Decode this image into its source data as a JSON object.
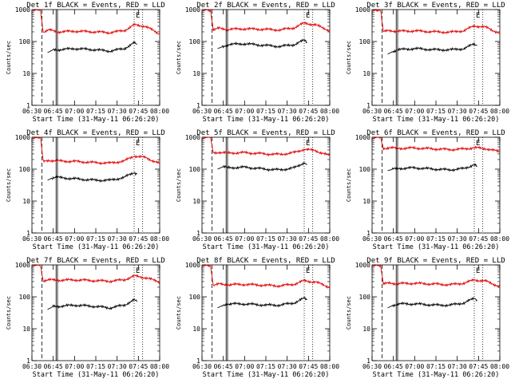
{
  "figure": {
    "xlabel": "Start Time (31-May-11 06:26:20)",
    "ylabel": "Counts/sec",
    "colors": {
      "events": "#000000",
      "lld": "#e00000",
      "axes": "#000000"
    }
  },
  "chart_data": [
    {
      "type": "line",
      "title": "Det 1f BLACK = Events, RED = LLD",
      "xlabel": "Start Time (31-May-11 06:26:20)",
      "ylabel": "Counts/sec",
      "xlim": [
        "06:30",
        "08:00"
      ],
      "ylim": [
        1,
        1000
      ],
      "yscale": "log",
      "xticks": [
        "06:30",
        "06:45",
        "07:00",
        "07:15",
        "07:30",
        "07:45",
        "08:00"
      ],
      "yticks": [
        "1",
        "10",
        "100",
        "1000"
      ],
      "markers": [
        {
          "time": "06:37",
          "style": "dashed"
        },
        {
          "time": "06:47",
          "style": "solid"
        },
        {
          "time": "06:48",
          "style": "solid"
        },
        {
          "time": "07:42",
          "style": "dotted",
          "label": "E"
        },
        {
          "time": "07:48",
          "style": "dotted"
        }
      ],
      "series": [
        {
          "key": "lld",
          "color": "#e00000",
          "x": [
            "06:30",
            "06:34",
            "06:36",
            "06:38",
            "06:42",
            "06:48",
            "07:00",
            "07:15",
            "07:25",
            "07:35",
            "07:42",
            "07:50",
            "08:00"
          ],
          "y": [
            900,
            1000,
            950,
            200,
            230,
            200,
            210,
            200,
            190,
            220,
            330,
            300,
            170
          ]
        },
        {
          "key": "events",
          "color": "#000000",
          "x": [
            "06:41",
            "06:45",
            "06:48",
            "07:00",
            "07:15",
            "07:25",
            "07:35",
            "07:42",
            "07:44"
          ],
          "y": [
            45,
            55,
            55,
            60,
            55,
            50,
            60,
            90,
            80
          ]
        }
      ]
    },
    {
      "type": "line",
      "title": "Det 2f BLACK = Events, RED = LLD",
      "xlabel": "Start Time (31-May-11 06:26:20)",
      "ylabel": "Counts/sec",
      "xlim": [
        "06:30",
        "08:00"
      ],
      "ylim": [
        1,
        1000
      ],
      "yscale": "log",
      "xticks": [
        "06:30",
        "06:45",
        "07:00",
        "07:15",
        "07:30",
        "07:45",
        "08:00"
      ],
      "yticks": [
        "1",
        "10",
        "100",
        "1000"
      ],
      "markers": [
        {
          "time": "06:37",
          "style": "dashed"
        },
        {
          "time": "06:47",
          "style": "solid"
        },
        {
          "time": "06:48",
          "style": "solid"
        },
        {
          "time": "07:42",
          "style": "dotted",
          "label": "E"
        },
        {
          "time": "07:48",
          "style": "dotted"
        }
      ],
      "series": [
        {
          "key": "lld",
          "color": "#e00000",
          "x": [
            "06:30",
            "06:34",
            "06:36",
            "06:38",
            "06:42",
            "06:48",
            "07:00",
            "07:15",
            "07:25",
            "07:35",
            "07:42",
            "07:50",
            "08:00"
          ],
          "y": [
            900,
            1000,
            950,
            230,
            260,
            240,
            250,
            240,
            230,
            270,
            380,
            330,
            220
          ]
        },
        {
          "key": "events",
          "color": "#000000",
          "x": [
            "06:41",
            "06:45",
            "06:48",
            "07:00",
            "07:15",
            "07:25",
            "07:35",
            "07:42",
            "07:44"
          ],
          "y": [
            60,
            70,
            80,
            85,
            75,
            70,
            80,
            110,
            95
          ]
        }
      ]
    },
    {
      "type": "line",
      "title": "Det 3f BLACK = Events, RED = LLD",
      "xlabel": "Start Time (31-May-11 06:26:20)",
      "ylabel": "Counts/sec",
      "xlim": [
        "06:30",
        "08:00"
      ],
      "ylim": [
        1,
        1000
      ],
      "yscale": "log",
      "xticks": [
        "06:30",
        "06:45",
        "07:00",
        "07:15",
        "07:30",
        "07:45",
        "08:00"
      ],
      "yticks": [
        "1",
        "10",
        "100",
        "1000"
      ],
      "markers": [
        {
          "time": "06:37",
          "style": "dashed"
        },
        {
          "time": "06:47",
          "style": "solid"
        },
        {
          "time": "06:48",
          "style": "solid"
        },
        {
          "time": "07:42",
          "style": "dotted",
          "label": "E"
        },
        {
          "time": "07:48",
          "style": "dotted"
        }
      ],
      "series": [
        {
          "key": "lld",
          "color": "#e00000",
          "x": [
            "06:30",
            "06:34",
            "06:36",
            "06:38",
            "06:42",
            "06:48",
            "07:00",
            "07:15",
            "07:25",
            "07:35",
            "07:42",
            "07:50",
            "08:00"
          ],
          "y": [
            900,
            1000,
            950,
            200,
            220,
            210,
            215,
            200,
            195,
            220,
            310,
            280,
            180
          ]
        },
        {
          "key": "events",
          "color": "#000000",
          "x": [
            "06:41",
            "06:45",
            "06:48",
            "07:00",
            "07:15",
            "07:25",
            "07:35",
            "07:42",
            "07:44"
          ],
          "y": [
            40,
            50,
            55,
            60,
            55,
            55,
            60,
            85,
            75
          ]
        }
      ]
    },
    {
      "type": "line",
      "title": "Det 4f BLACK = Events, RED = LLD",
      "xlabel": "Start Time (31-May-11 06:26:20)",
      "ylabel": "Counts/sec",
      "xlim": [
        "06:30",
        "08:00"
      ],
      "ylim": [
        1,
        1000
      ],
      "yscale": "log",
      "xticks": [
        "06:30",
        "06:45",
        "07:00",
        "07:15",
        "07:30",
        "07:45",
        "08:00"
      ],
      "yticks": [
        "1",
        "10",
        "100",
        "1000"
      ],
      "markers": [
        {
          "time": "06:37",
          "style": "dashed"
        },
        {
          "time": "06:47",
          "style": "solid"
        },
        {
          "time": "06:48",
          "style": "solid"
        },
        {
          "time": "07:42",
          "style": "dotted",
          "label": "E"
        },
        {
          "time": "07:48",
          "style": "dotted"
        }
      ],
      "series": [
        {
          "key": "lld",
          "color": "#e00000",
          "x": [
            "06:30",
            "06:34",
            "06:36",
            "06:38",
            "06:42",
            "06:48",
            "07:00",
            "07:15",
            "07:25",
            "07:35",
            "07:42",
            "07:50",
            "08:00"
          ],
          "y": [
            900,
            1000,
            950,
            170,
            190,
            180,
            175,
            160,
            155,
            180,
            260,
            230,
            150
          ]
        },
        {
          "key": "events",
          "color": "#000000",
          "x": [
            "06:41",
            "06:45",
            "06:48",
            "07:00",
            "07:15",
            "07:25",
            "07:35",
            "07:42",
            "07:44"
          ],
          "y": [
            45,
            55,
            55,
            50,
            45,
            45,
            55,
            80,
            70
          ]
        }
      ]
    },
    {
      "type": "line",
      "title": "Det 5f BLACK = Events, RED = LLD",
      "xlabel": "Start Time (31-May-11 06:26:20)",
      "ylabel": "Counts/sec",
      "xlim": [
        "06:30",
        "08:00"
      ],
      "ylim": [
        1,
        1000
      ],
      "yscale": "log",
      "xticks": [
        "06:30",
        "06:45",
        "07:00",
        "07:15",
        "07:30",
        "07:45",
        "08:00"
      ],
      "yticks": [
        "1",
        "10",
        "100",
        "1000"
      ],
      "markers": [
        {
          "time": "06:37",
          "style": "dashed"
        },
        {
          "time": "06:47",
          "style": "solid"
        },
        {
          "time": "06:48",
          "style": "solid"
        },
        {
          "time": "07:42",
          "style": "dotted",
          "label": "E"
        },
        {
          "time": "07:48",
          "style": "dotted"
        }
      ],
      "series": [
        {
          "key": "lld",
          "color": "#e00000",
          "x": [
            "06:30",
            "06:34",
            "06:36",
            "06:38",
            "06:42",
            "06:48",
            "07:00",
            "07:15",
            "07:25",
            "07:35",
            "07:42",
            "07:50",
            "08:00"
          ],
          "y": [
            900,
            1000,
            950,
            320,
            340,
            320,
            330,
            300,
            290,
            330,
            420,
            380,
            260
          ]
        },
        {
          "key": "events",
          "color": "#000000",
          "x": [
            "06:41",
            "06:45",
            "06:48",
            "07:00",
            "07:15",
            "07:25",
            "07:35",
            "07:42",
            "07:44"
          ],
          "y": [
            100,
            120,
            110,
            115,
            100,
            95,
            110,
            160,
            140
          ]
        }
      ]
    },
    {
      "type": "line",
      "title": "Det 6f BLACK = Events, RED = LLD",
      "xlabel": "Start Time (31-May-11 06:26:20)",
      "ylabel": "Counts/sec",
      "xlim": [
        "06:30",
        "08:00"
      ],
      "ylim": [
        1,
        1000
      ],
      "yscale": "log",
      "xticks": [
        "06:30",
        "06:45",
        "07:00",
        "07:15",
        "07:30",
        "07:45",
        "08:00"
      ],
      "yticks": [
        "1",
        "10",
        "100",
        "1000"
      ],
      "markers": [
        {
          "time": "06:37",
          "style": "dashed"
        },
        {
          "time": "06:47",
          "style": "solid"
        },
        {
          "time": "06:48",
          "style": "solid"
        },
        {
          "time": "07:42",
          "style": "dotted",
          "label": "E"
        },
        {
          "time": "07:48",
          "style": "dotted"
        }
      ],
      "series": [
        {
          "key": "lld",
          "color": "#e00000",
          "x": [
            "06:30",
            "06:34",
            "06:36",
            "06:38",
            "06:42",
            "06:48",
            "07:00",
            "07:15",
            "07:25",
            "07:35",
            "07:42",
            "07:50",
            "08:00"
          ],
          "y": [
            900,
            1000,
            950,
            450,
            470,
            450,
            460,
            430,
            410,
            430,
            470,
            440,
            350
          ]
        },
        {
          "key": "events",
          "color": "#000000",
          "x": [
            "06:41",
            "06:45",
            "06:48",
            "07:00",
            "07:15",
            "07:25",
            "07:35",
            "07:42",
            "07:44"
          ],
          "y": [
            90,
            100,
            105,
            110,
            100,
            95,
            105,
            140,
            120
          ]
        }
      ]
    },
    {
      "type": "line",
      "title": "Det 7f BLACK = Events, RED = LLD",
      "xlabel": "Start Time (31-May-11 06:26:20)",
      "ylabel": "Counts/sec",
      "xlim": [
        "06:30",
        "08:00"
      ],
      "ylim": [
        1,
        1000
      ],
      "yscale": "log",
      "xticks": [
        "06:30",
        "06:45",
        "07:00",
        "07:15",
        "07:30",
        "07:45",
        "08:00"
      ],
      "yticks": [
        "1",
        "10",
        "100",
        "1000"
      ],
      "markers": [
        {
          "time": "06:37",
          "style": "dashed"
        },
        {
          "time": "06:47",
          "style": "solid"
        },
        {
          "time": "06:48",
          "style": "solid"
        },
        {
          "time": "07:42",
          "style": "dotted",
          "label": "E"
        },
        {
          "time": "07:48",
          "style": "dotted"
        }
      ],
      "series": [
        {
          "key": "lld",
          "color": "#e00000",
          "x": [
            "06:30",
            "06:34",
            "06:36",
            "06:38",
            "06:42",
            "06:48",
            "07:00",
            "07:15",
            "07:25",
            "07:35",
            "07:42",
            "07:50",
            "08:00"
          ],
          "y": [
            900,
            1000,
            950,
            320,
            340,
            330,
            340,
            320,
            310,
            340,
            450,
            400,
            290
          ]
        },
        {
          "key": "events",
          "color": "#000000",
          "x": [
            "06:41",
            "06:45",
            "06:48",
            "07:00",
            "07:15",
            "07:25",
            "07:35",
            "07:42",
            "07:44"
          ],
          "y": [
            40,
            50,
            50,
            55,
            50,
            45,
            55,
            80,
            70
          ]
        }
      ]
    },
    {
      "type": "line",
      "title": "Det 8f BLACK = Events, RED = LLD",
      "xlabel": "Start Time (31-May-11 06:26:20)",
      "ylabel": "Counts/sec",
      "xlim": [
        "06:30",
        "08:00"
      ],
      "ylim": [
        1,
        1000
      ],
      "yscale": "log",
      "xticks": [
        "06:30",
        "06:45",
        "07:00",
        "07:15",
        "07:30",
        "07:45",
        "08:00"
      ],
      "yticks": [
        "1",
        "10",
        "100",
        "1000"
      ],
      "markers": [
        {
          "time": "06:37",
          "style": "dashed"
        },
        {
          "time": "06:47",
          "style": "solid"
        },
        {
          "time": "06:48",
          "style": "solid"
        },
        {
          "time": "07:42",
          "style": "dotted",
          "label": "E"
        },
        {
          "time": "07:48",
          "style": "dotted"
        }
      ],
      "series": [
        {
          "key": "lld",
          "color": "#e00000",
          "x": [
            "06:30",
            "06:34",
            "06:36",
            "06:38",
            "06:42",
            "06:48",
            "07:00",
            "07:15",
            "07:25",
            "07:35",
            "07:42",
            "07:50",
            "08:00"
          ],
          "y": [
            900,
            1000,
            950,
            230,
            250,
            240,
            245,
            230,
            220,
            250,
            320,
            290,
            200
          ]
        },
        {
          "key": "events",
          "color": "#000000",
          "x": [
            "06:41",
            "06:45",
            "06:48",
            "07:00",
            "07:15",
            "07:25",
            "07:35",
            "07:42",
            "07:44"
          ],
          "y": [
            45,
            55,
            60,
            60,
            55,
            55,
            65,
            90,
            80
          ]
        }
      ]
    },
    {
      "type": "line",
      "title": "Det 9f BLACK = Events, RED = LLD",
      "xlabel": "Start Time (31-May-11 06:26:20)",
      "ylabel": "Counts/sec",
      "xlim": [
        "06:30",
        "08:00"
      ],
      "ylim": [
        1,
        1000
      ],
      "yscale": "log",
      "xticks": [
        "06:30",
        "06:45",
        "07:00",
        "07:15",
        "07:30",
        "07:45",
        "08:00"
      ],
      "yticks": [
        "1",
        "10",
        "100",
        "1000"
      ],
      "markers": [
        {
          "time": "06:37",
          "style": "dashed"
        },
        {
          "time": "06:47",
          "style": "solid"
        },
        {
          "time": "06:48",
          "style": "solid"
        },
        {
          "time": "07:42",
          "style": "dotted",
          "label": "E"
        },
        {
          "time": "07:48",
          "style": "dotted"
        }
      ],
      "series": [
        {
          "key": "lld",
          "color": "#e00000",
          "x": [
            "06:30",
            "06:34",
            "06:36",
            "06:38",
            "06:42",
            "06:48",
            "07:00",
            "07:15",
            "07:25",
            "07:35",
            "07:42",
            "07:50",
            "08:00"
          ],
          "y": [
            900,
            1000,
            950,
            250,
            270,
            260,
            265,
            250,
            240,
            270,
            340,
            310,
            210
          ]
        },
        {
          "key": "events",
          "color": "#000000",
          "x": [
            "06:41",
            "06:45",
            "06:48",
            "07:00",
            "07:15",
            "07:25",
            "07:35",
            "07:42",
            "07:44"
          ],
          "y": [
            45,
            55,
            60,
            60,
            55,
            55,
            65,
            90,
            80
          ]
        }
      ]
    }
  ]
}
